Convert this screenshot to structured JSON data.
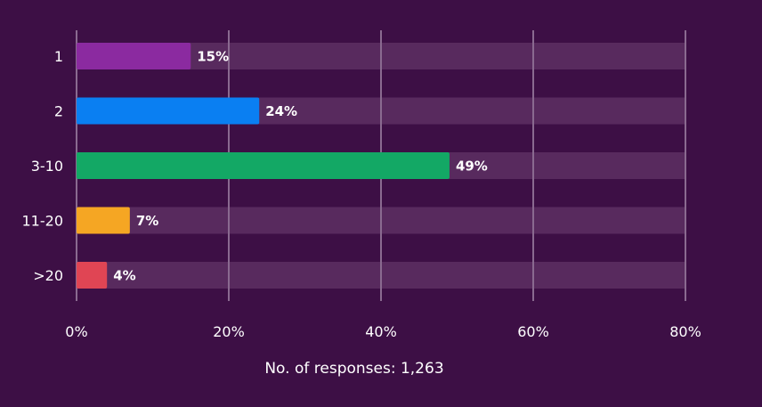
{
  "chart_data": {
    "type": "bar",
    "orientation": "horizontal",
    "categories": [
      "1",
      "2",
      "3-10",
      "11-20",
      ">20"
    ],
    "values": [
      15,
      24,
      49,
      7,
      4
    ],
    "value_labels": [
      "15%",
      "24%",
      "49%",
      "7%",
      "4%"
    ],
    "colors": [
      "#8b2aa0",
      "#0a7ff2",
      "#13a865",
      "#f5a623",
      "#e04554"
    ],
    "xlim": [
      0,
      80
    ],
    "xticks": [
      0,
      20,
      40,
      60,
      80
    ],
    "xtick_labels": [
      "0%",
      "20%",
      "40%",
      "60%",
      "80%"
    ],
    "grid": true,
    "track_color": "#582a5e",
    "grid_color": "#8a6a90",
    "footnote": "No. of responses: 1,263"
  }
}
